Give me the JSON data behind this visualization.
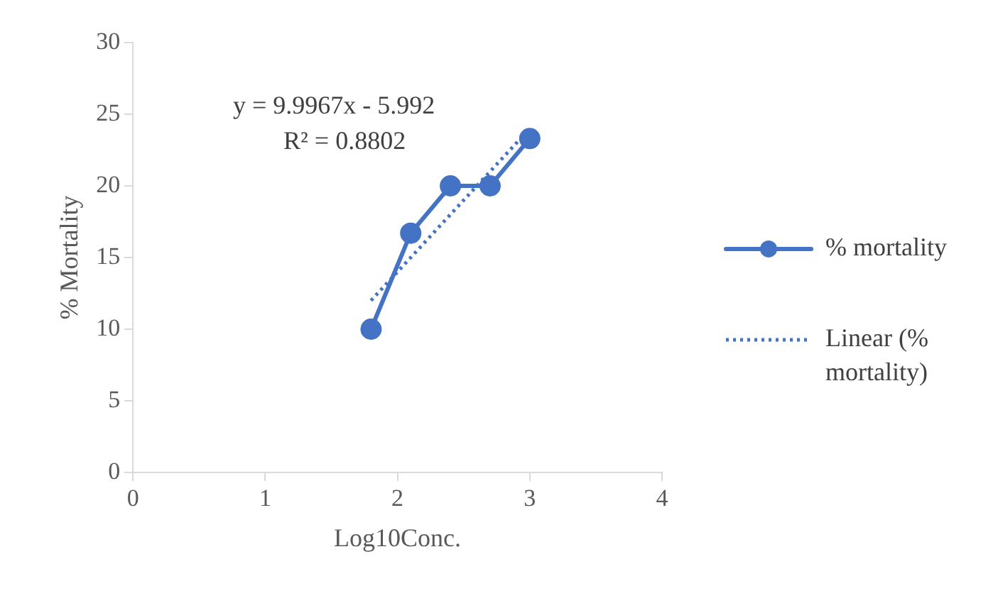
{
  "chart_data": {
    "type": "line",
    "xlabel": "Log10Conc.",
    "ylabel": "% Mortality",
    "x": [
      1.8,
      2.1,
      2.4,
      2.7,
      3.0
    ],
    "xlim": [
      0,
      4
    ],
    "xticks": [
      0,
      1,
      2,
      3,
      4
    ],
    "ylim": [
      0,
      30
    ],
    "yticks": [
      0,
      5,
      10,
      15,
      20,
      25,
      30
    ],
    "grid": false,
    "legend": "right",
    "annotations": [
      "y = 9.9967x - 5.992",
      "R² = 0.8802"
    ],
    "series": [
      {
        "name": "% mortality",
        "color": "#4472c4",
        "values": [
          10,
          16.7,
          20,
          20,
          23.3
        ],
        "marker": "circle",
        "line_style": "solid"
      },
      {
        "name": "Linear (% mortality)",
        "type": "line",
        "x": [
          1.8,
          3.0
        ],
        "values": [
          12,
          24
        ],
        "color": "#4472c4",
        "marker": "none",
        "line_style": "dotted"
      }
    ]
  }
}
